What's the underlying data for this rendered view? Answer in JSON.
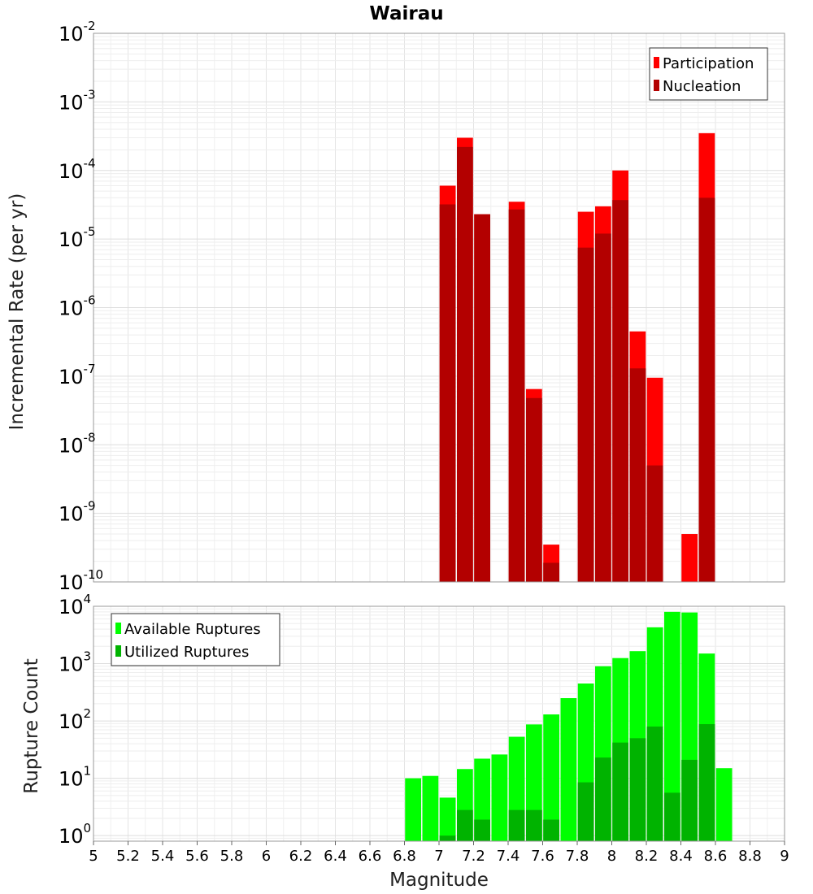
{
  "chart_data": [
    {
      "type": "bar",
      "title": "Wairau",
      "xlabel": "",
      "ylabel": "Incremental Rate (per yr)",
      "yscale": "log",
      "ylim": [
        1e-10,
        0.01
      ],
      "xlim": [
        5,
        9
      ],
      "legend": "top-right",
      "grid": true,
      "series": [
        {
          "name": "Participation",
          "color": "#ff0000",
          "x": [
            7.05,
            7.15,
            7.25,
            7.45,
            7.55,
            7.65,
            7.85,
            7.95,
            8.05,
            8.15,
            8.25,
            8.45,
            8.55
          ],
          "values": [
            6e-05,
            0.0003,
            2.3e-05,
            3.5e-05,
            6.5e-08,
            3.5e-10,
            2.5e-05,
            3e-05,
            0.0001,
            4.5e-07,
            9.5e-08,
            5e-10,
            0.00035
          ]
        },
        {
          "name": "Nucleation",
          "color": "#b30000",
          "x": [
            7.05,
            7.15,
            7.25,
            7.45,
            7.55,
            7.65,
            7.85,
            7.95,
            8.05,
            8.15,
            8.25,
            8.55
          ],
          "values": [
            3.2e-05,
            0.00022,
            2.3e-05,
            2.7e-05,
            4.8e-08,
            1.9e-10,
            7.5e-06,
            1.2e-05,
            3.7e-05,
            1.3e-07,
            5e-09,
            4e-05
          ]
        }
      ]
    },
    {
      "type": "bar",
      "title": "",
      "xlabel": "Magnitude",
      "ylabel": "Rupture Count",
      "yscale": "log",
      "ylim": [
        0.8,
        10000
      ],
      "xlim": [
        5,
        9
      ],
      "legend": "top-left",
      "grid": true,
      "series": [
        {
          "name": "Available Ruptures",
          "color": "#00ff00",
          "x": [
            6.85,
            6.95,
            7.05,
            7.15,
            7.25,
            7.35,
            7.45,
            7.55,
            7.65,
            7.75,
            7.85,
            7.95,
            8.05,
            8.15,
            8.25,
            8.35,
            8.45,
            8.55,
            8.65
          ],
          "values": [
            10,
            11,
            4.6,
            14.5,
            22,
            26,
            53,
            87,
            130,
            250,
            450,
            900,
            1250,
            1650,
            4300,
            8000,
            7800,
            1500,
            15
          ]
        },
        {
          "name": "Utilized Ruptures",
          "color": "#00b300",
          "x": [
            7.05,
            7.15,
            7.25,
            7.45,
            7.55,
            7.65,
            7.85,
            7.95,
            8.05,
            8.15,
            8.25,
            8.35,
            8.45,
            8.55
          ],
          "values": [
            1,
            2.8,
            1.9,
            2.8,
            2.8,
            1.9,
            8.5,
            23,
            42,
            50,
            80,
            5.6,
            21,
            88
          ]
        }
      ]
    }
  ],
  "x_ticks": [
    "5",
    "5.2",
    "5.4",
    "5.6",
    "5.8",
    "6",
    "6.2",
    "6.4",
    "6.6",
    "6.8",
    "7",
    "7.2",
    "7.4",
    "7.6",
    "7.8",
    "8",
    "8.2",
    "8.4",
    "8.6",
    "8.8",
    "9"
  ],
  "top_y_ticks": [
    {
      "base": "10",
      "exp": "-2"
    },
    {
      "base": "10",
      "exp": "-3"
    },
    {
      "base": "10",
      "exp": "-4"
    },
    {
      "base": "10",
      "exp": "-5"
    },
    {
      "base": "10",
      "exp": "-6"
    },
    {
      "base": "10",
      "exp": "-7"
    },
    {
      "base": "10",
      "exp": "-8"
    },
    {
      "base": "10",
      "exp": "-9"
    },
    {
      "base": "10",
      "exp": "-10"
    }
  ],
  "bottom_y_ticks": [
    {
      "base": "10",
      "exp": "4"
    },
    {
      "base": "10",
      "exp": "3"
    },
    {
      "base": "10",
      "exp": "2"
    },
    {
      "base": "10",
      "exp": "1"
    },
    {
      "base": "10",
      "exp": "0"
    }
  ]
}
